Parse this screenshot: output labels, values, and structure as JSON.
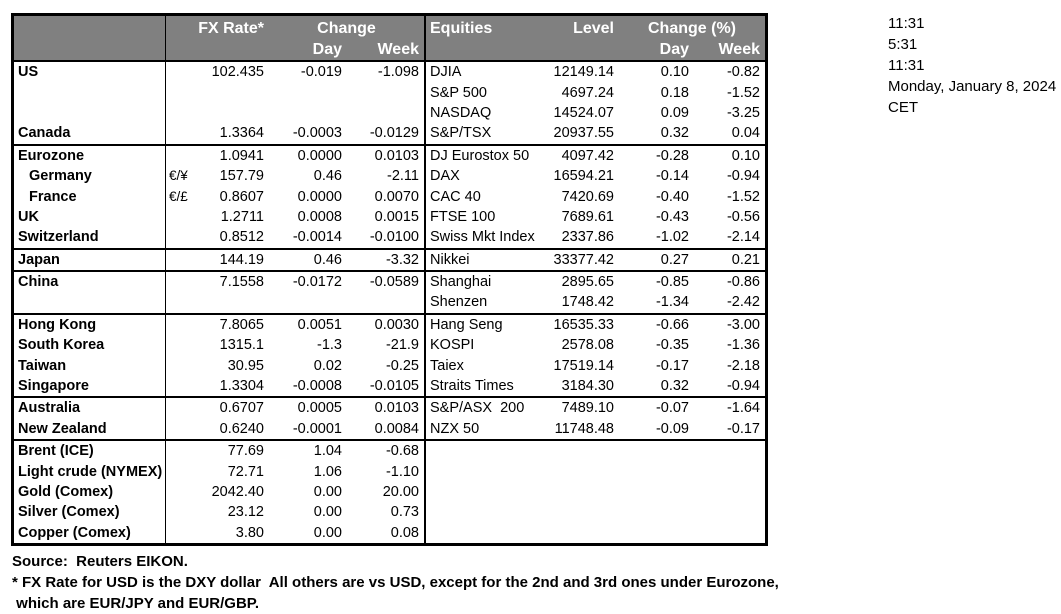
{
  "table": {
    "header": {
      "fx_rate": "FX Rate*",
      "fx_change": "Change",
      "fx_day": "Day",
      "fx_week": "Week",
      "equities": "Equities",
      "level": "Level",
      "eq_change": "Change (%)",
      "eq_day": "Day",
      "eq_week": "Week"
    },
    "rows": [
      {
        "label": "US",
        "pair": "",
        "fx_rate": "102.435",
        "fx_day": "-0.019",
        "fx_week": "-1.098",
        "equity": "DJIA",
        "level": "12149.14",
        "eq_day": "0.10",
        "eq_week": "-0.82",
        "indent": false,
        "divider_above": false
      },
      {
        "label": "",
        "pair": "",
        "fx_rate": "",
        "fx_day": "",
        "fx_week": "",
        "equity": "S&P 500",
        "level": "4697.24",
        "eq_day": "0.18",
        "eq_week": "-1.52",
        "indent": false,
        "divider_above": false
      },
      {
        "label": "",
        "pair": "",
        "fx_rate": "",
        "fx_day": "",
        "fx_week": "",
        "equity": "NASDAQ",
        "level": "14524.07",
        "eq_day": "0.09",
        "eq_week": "-3.25",
        "indent": false,
        "divider_above": false
      },
      {
        "label": "Canada",
        "pair": "",
        "fx_rate": "1.3364",
        "fx_day": "-0.0003",
        "fx_week": "-0.0129",
        "equity": "S&P/TSX",
        "level": "20937.55",
        "eq_day": "0.32",
        "eq_week": "0.04",
        "indent": false,
        "divider_above": false
      },
      {
        "label": "Eurozone",
        "pair": "",
        "fx_rate": "1.0941",
        "fx_day": "0.0000",
        "fx_week": "0.0103",
        "equity": "DJ Eurostox 50",
        "level": "4097.42",
        "eq_day": "-0.28",
        "eq_week": "0.10",
        "indent": false,
        "divider_above": true
      },
      {
        "label": "Germany",
        "pair": "€/¥",
        "fx_rate": "157.79",
        "fx_day": "0.46",
        "fx_week": "-2.11",
        "equity": "DAX",
        "level": "16594.21",
        "eq_day": "-0.14",
        "eq_week": "-0.94",
        "indent": true,
        "divider_above": false
      },
      {
        "label": "France",
        "pair": "€/£",
        "fx_rate": "0.8607",
        "fx_day": "0.0000",
        "fx_week": "0.0070",
        "equity": "CAC 40",
        "level": "7420.69",
        "eq_day": "-0.40",
        "eq_week": "-1.52",
        "indent": true,
        "divider_above": false
      },
      {
        "label": "UK",
        "pair": "",
        "fx_rate": "1.2711",
        "fx_day": "0.0008",
        "fx_week": "0.0015",
        "equity": "FTSE 100",
        "level": "7689.61",
        "eq_day": "-0.43",
        "eq_week": "-0.56",
        "indent": false,
        "divider_above": false
      },
      {
        "label": "Switzerland",
        "pair": "",
        "fx_rate": "0.8512",
        "fx_day": "-0.0014",
        "fx_week": "-0.0100",
        "equity": "Swiss Mkt Index",
        "level": "2337.86",
        "eq_day": "-1.02",
        "eq_week": "-2.14",
        "indent": false,
        "divider_above": false
      },
      {
        "label": "Japan",
        "pair": "",
        "fx_rate": "144.19",
        "fx_day": "0.46",
        "fx_week": "-3.32",
        "equity": "Nikkei",
        "level": "33377.42",
        "eq_day": "0.27",
        "eq_week": "0.21",
        "indent": false,
        "divider_above": true
      },
      {
        "label": "China",
        "pair": "",
        "fx_rate": "7.1558",
        "fx_day": "-0.0172",
        "fx_week": "-0.0589",
        "equity": "Shanghai",
        "level": "2895.65",
        "eq_day": "-0.85",
        "eq_week": "-0.86",
        "indent": false,
        "divider_above": true
      },
      {
        "label": "",
        "pair": "",
        "fx_rate": "",
        "fx_day": "",
        "fx_week": "",
        "equity": "Shenzen",
        "level": "1748.42",
        "eq_day": "-1.34",
        "eq_week": "-2.42",
        "indent": false,
        "divider_above": false
      },
      {
        "label": "Hong Kong",
        "pair": "",
        "fx_rate": "7.8065",
        "fx_day": "0.0051",
        "fx_week": "0.0030",
        "equity": "Hang Seng",
        "level": "16535.33",
        "eq_day": "-0.66",
        "eq_week": "-3.00",
        "indent": false,
        "divider_above": true
      },
      {
        "label": "South Korea",
        "pair": "",
        "fx_rate": "1315.1",
        "fx_day": "-1.3",
        "fx_week": "-21.9",
        "equity": "KOSPI",
        "level": "2578.08",
        "eq_day": "-0.35",
        "eq_week": "-1.36",
        "indent": false,
        "divider_above": false
      },
      {
        "label": "Taiwan",
        "pair": "",
        "fx_rate": "30.95",
        "fx_day": "0.02",
        "fx_week": "-0.25",
        "equity": "Taiex",
        "level": "17519.14",
        "eq_day": "-0.17",
        "eq_week": "-2.18",
        "indent": false,
        "divider_above": false
      },
      {
        "label": "Singapore",
        "pair": "",
        "fx_rate": "1.3304",
        "fx_day": "-0.0008",
        "fx_week": "-0.0105",
        "equity": "Straits Times",
        "level": "3184.30",
        "eq_day": "0.32",
        "eq_week": "-0.94",
        "indent": false,
        "divider_above": false
      },
      {
        "label": "Australia",
        "pair": "",
        "fx_rate": "0.6707",
        "fx_day": "0.0005",
        "fx_week": "0.0103",
        "equity": "S&P/ASX  200",
        "level": "7489.10",
        "eq_day": "-0.07",
        "eq_week": "-1.64",
        "indent": false,
        "divider_above": true
      },
      {
        "label": "New Zealand",
        "pair": "",
        "fx_rate": "0.6240",
        "fx_day": "-0.0001",
        "fx_week": "0.0084",
        "equity": "NZX 50",
        "level": "11748.48",
        "eq_day": "-0.09",
        "eq_week": "-0.17",
        "indent": false,
        "divider_above": false
      },
      {
        "label": "Brent (ICE)",
        "pair": "",
        "fx_rate": "77.69",
        "fx_day": "1.04",
        "fx_week": "-0.68",
        "equity": "",
        "level": "",
        "eq_day": "",
        "eq_week": "",
        "indent": false,
        "divider_above": true
      },
      {
        "label": "Light crude (NYMEX)",
        "pair": "",
        "fx_rate": "72.71",
        "fx_day": "1.06",
        "fx_week": "-1.10",
        "equity": "",
        "level": "",
        "eq_day": "",
        "eq_week": "",
        "indent": false,
        "divider_above": false
      },
      {
        "label": "Gold (Comex)",
        "pair": "",
        "fx_rate": "2042.40",
        "fx_day": "0.00",
        "fx_week": "20.00",
        "equity": "",
        "level": "",
        "eq_day": "",
        "eq_week": "",
        "indent": false,
        "divider_above": false
      },
      {
        "label": "Silver (Comex)",
        "pair": "",
        "fx_rate": "23.12",
        "fx_day": "0.00",
        "fx_week": "0.73",
        "equity": "",
        "level": "",
        "eq_day": "",
        "eq_week": "",
        "indent": false,
        "divider_above": false
      },
      {
        "label": "Copper (Comex)",
        "pair": "",
        "fx_rate": "3.80",
        "fx_day": "0.00",
        "fx_week": "0.08",
        "equity": "",
        "level": "",
        "eq_day": "",
        "eq_week": "",
        "indent": false,
        "divider_above": false
      }
    ]
  },
  "time_panel": {
    "times": [
      "11:31",
      "5:31",
      "11:31"
    ],
    "date": "Monday, January 8, 2024",
    "timezone": "CET"
  },
  "footer": {
    "source": "Source:  Reuters EIKON.",
    "footnote_line1": "* FX Rate for USD is the DXY dollar  All others are vs USD, except for the 2nd and 3rd ones under Eurozone,",
    "footnote_line2": " which are EUR/JPY and EUR/GBP."
  },
  "colors": {
    "header_bg": "#808080",
    "header_text": "#FFFFFF",
    "border": "#000000",
    "text": "#000000"
  }
}
